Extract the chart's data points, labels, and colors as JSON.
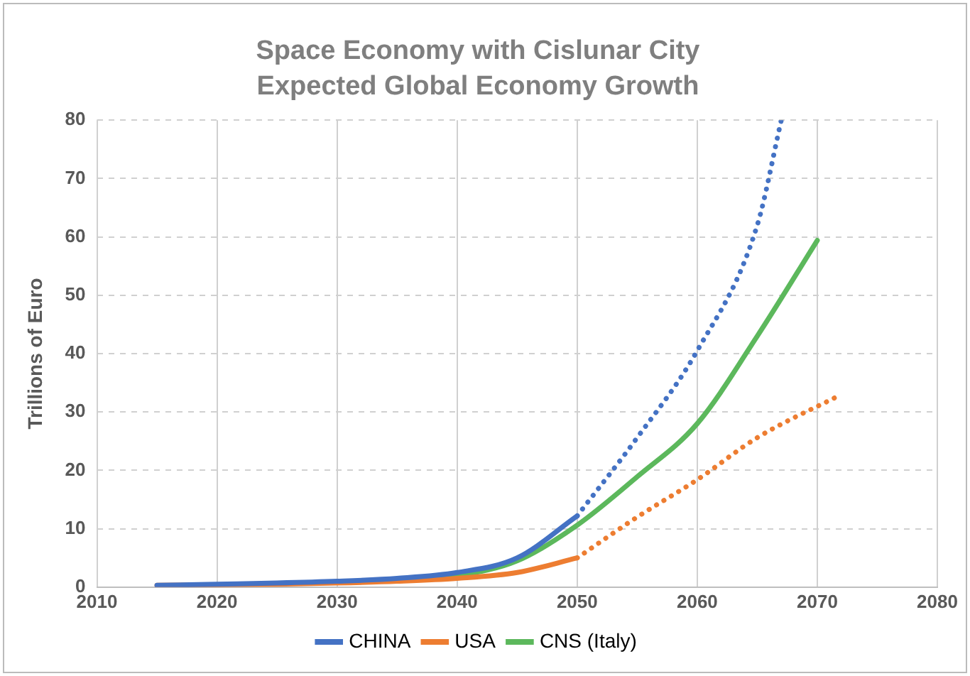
{
  "chart_data": {
    "type": "line",
    "title": "Space Economy with Cislunar City",
    "subtitle": "Expected Global Economy Growth",
    "ylabel": "Trillions of Euro",
    "xlim": [
      2010,
      2080
    ],
    "xticks": [
      2010,
      2020,
      2030,
      2040,
      2050,
      2060,
      2070,
      2080
    ],
    "ylim": [
      0,
      80
    ],
    "yticks": [
      0,
      10,
      20,
      30,
      40,
      50,
      60,
      70,
      80
    ],
    "grid": true,
    "legend": "bottom",
    "marker": "none",
    "series": [
      {
        "name": "CHINA",
        "color": "#4472c4",
        "line_style": "solid",
        "x": [
          2015,
          2020,
          2025,
          2030,
          2035,
          2040,
          2045,
          2050
        ],
        "values": [
          0.3,
          0.5,
          0.7,
          1,
          1.5,
          2.5,
          5,
          12.2
        ]
      },
      {
        "name": "USA",
        "color": "#ed7d31",
        "line_style": "solid",
        "x": [
          2015,
          2020,
          2025,
          2030,
          2035,
          2040,
          2045,
          2050
        ],
        "values": [
          0.3,
          0.4,
          0.5,
          0.7,
          1,
          1.5,
          2.5,
          5
        ]
      },
      {
        "name": "CNS (Italy)",
        "color": "#5cb85c",
        "line_style": "solid",
        "x": [
          2035,
          2040,
          2045,
          2050,
          2055,
          2060,
          2065,
          2070
        ],
        "values": [
          1.3,
          2,
          4.5,
          10.6,
          18.9,
          28,
          43,
          59.4
        ]
      },
      {
        "color": "#4472c4",
        "line_style": "dotted",
        "x": [
          2050,
          2055,
          2060,
          2065,
          2067
        ],
        "values": [
          12.2,
          25.6,
          40.5,
          62,
          80
        ]
      },
      {
        "color": "#ed7d31",
        "line_style": "dotted",
        "x": [
          2050,
          2055,
          2060,
          2065,
          2072
        ],
        "values": [
          5,
          12,
          18.4,
          25.6,
          33
        ]
      }
    ]
  }
}
